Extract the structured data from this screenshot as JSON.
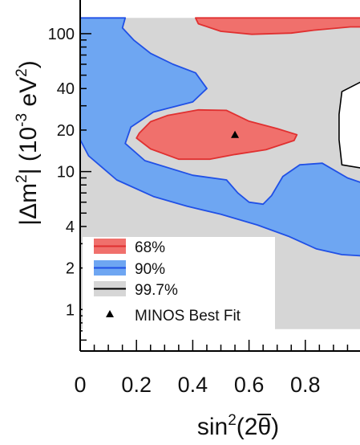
{
  "chart_data": {
    "type": "contour",
    "xlabel": "sin²(2θ̄)",
    "ylabel": "|Δm̄²| (10⁻³ eV²)",
    "y_scale": "log",
    "xlim": [
      0,
      1
    ],
    "ylim": [
      0.5,
      130
    ],
    "x_ticks": [
      0,
      0.2,
      0.4,
      0.6,
      0.8
    ],
    "x_tick_labels": [
      "0",
      "0.2",
      "0.4",
      "0.6",
      "0.8"
    ],
    "y_ticks": [
      1,
      2,
      4,
      10,
      20,
      40,
      100
    ],
    "y_tick_labels": [
      "1",
      "2",
      "4",
      "10",
      "20",
      "40",
      "100"
    ],
    "legend_position": "bottom-left",
    "legend": [
      {
        "label": "68%",
        "kind": "region",
        "fill": "#f0706c",
        "stroke": "#e03030"
      },
      {
        "label": "90%",
        "kind": "region",
        "fill": "#6ea6f2",
        "stroke": "#2050e6"
      },
      {
        "label": "99.7%",
        "kind": "region",
        "fill": "#d6d6d6",
        "stroke": "#000000"
      },
      {
        "label": "MINOS Best Fit",
        "kind": "marker",
        "fill": "#000000"
      }
    ],
    "regions": [
      {
        "name": "99.7%",
        "fill": "#d6d6d6",
        "stroke": "#000000",
        "outline": [
          [
            0,
            0.72
          ],
          [
            0,
            130
          ],
          [
            1,
            130
          ],
          [
            1,
            0.72
          ]
        ]
      },
      {
        "name": "99.7%",
        "hole_fill": "#ffffff",
        "stroke": "#000000",
        "outline": [
          [
            1.0,
            10.6
          ],
          [
            0.93,
            11.2
          ],
          [
            0.92,
            17
          ],
          [
            0.92,
            26
          ],
          [
            0.93,
            38
          ],
          [
            1.0,
            45
          ]
        ]
      },
      {
        "name": "90%",
        "fill": "#6ea6f2",
        "stroke": "#2050e6",
        "outline": [
          [
            0.16,
            130
          ],
          [
            0.15,
            110
          ],
          [
            0.19,
            90
          ],
          [
            0.25,
            72
          ],
          [
            0.33,
            60
          ],
          [
            0.41,
            52
          ],
          [
            0.45,
            40
          ],
          [
            0.4,
            32
          ],
          [
            0.26,
            27
          ],
          [
            0.18,
            21
          ],
          [
            0.16,
            16
          ],
          [
            0.23,
            12
          ],
          [
            0.4,
            9.4
          ],
          [
            0.52,
            8.7
          ],
          [
            0.56,
            7.0
          ],
          [
            0.6,
            6.0
          ],
          [
            0.65,
            5.8
          ],
          [
            0.68,
            6.7
          ],
          [
            0.72,
            9.2
          ],
          [
            0.78,
            11.2
          ],
          [
            0.86,
            11.5
          ],
          [
            0.95,
            9
          ],
          [
            1.0,
            8.3
          ],
          [
            1.0,
            2.45
          ],
          [
            0.93,
            2.5
          ],
          [
            0.84,
            2.75
          ],
          [
            0.74,
            3.4
          ],
          [
            0.63,
            4.1
          ],
          [
            0.5,
            4.9
          ],
          [
            0.38,
            5.6
          ],
          [
            0.26,
            6.6
          ],
          [
            0.13,
            8.7
          ],
          [
            0.03,
            13
          ],
          [
            0,
            17
          ],
          [
            0,
            130
          ]
        ]
      },
      {
        "name": "68%",
        "fill": "#f0706c",
        "stroke": "#e03030",
        "outline": [
          [
            0.41,
            130
          ],
          [
            0.42,
            118
          ],
          [
            0.5,
            104
          ],
          [
            0.61,
            99
          ],
          [
            0.75,
            101
          ],
          [
            0.83,
            106
          ],
          [
            0.96,
            112
          ],
          [
            1.0,
            112
          ],
          [
            1.0,
            130
          ]
        ]
      },
      {
        "name": "68%",
        "fill": "#f0706c",
        "stroke": "#e03030",
        "outline": [
          [
            0.21,
            19
          ],
          [
            0.25,
            23
          ],
          [
            0.31,
            25.5
          ],
          [
            0.42,
            28
          ],
          [
            0.52,
            27.8
          ],
          [
            0.6,
            23.2
          ],
          [
            0.7,
            20.5
          ],
          [
            0.77,
            18.5
          ],
          [
            0.76,
            16.8
          ],
          [
            0.66,
            14.4
          ],
          [
            0.55,
            13.3
          ],
          [
            0.46,
            12.3
          ],
          [
            0.35,
            12.3
          ],
          [
            0.25,
            14.6
          ],
          [
            0.2,
            17.5
          ]
        ]
      }
    ],
    "best_fit": {
      "label": "MINOS Best Fit",
      "x": 0.55,
      "y": 18.5
    }
  }
}
